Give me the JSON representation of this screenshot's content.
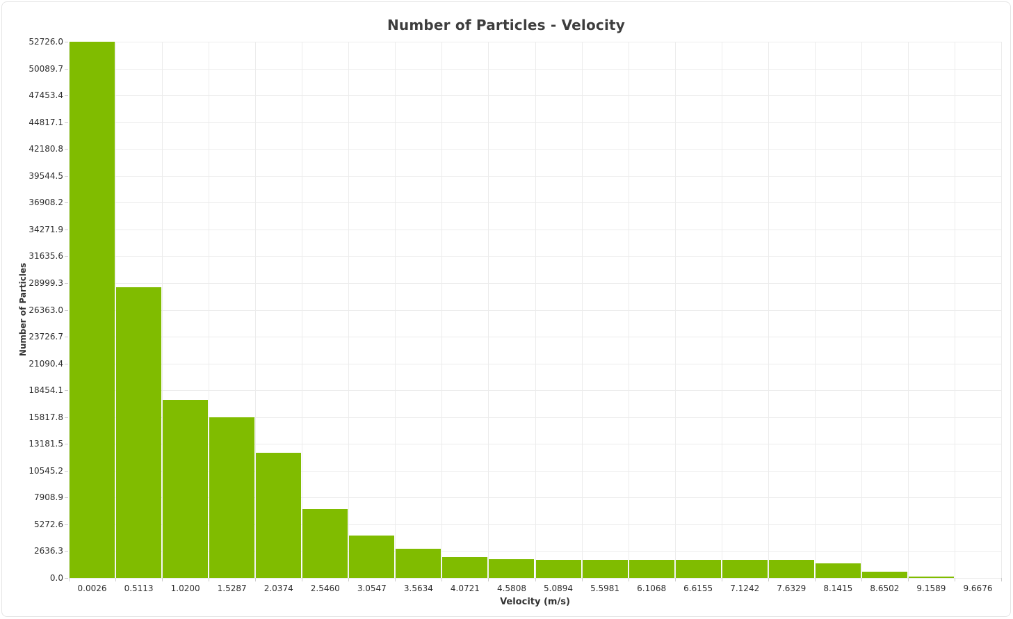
{
  "title": "Number of Particles - Velocity",
  "colors": {
    "bar": "#80bc00",
    "grid": "#ececec",
    "tick_mark": "#cccccc",
    "tick_text": "#2d2d2d",
    "title_text": "#3d3d3d",
    "axis_title_text": "#333333",
    "panel_border": "#e5e5e5",
    "background": "#ffffff"
  },
  "chart_data": {
    "type": "bar",
    "title": "Number of Particles - Velocity",
    "xlabel": "Velocity (m/s)",
    "ylabel": "Number of Particles",
    "categories": [
      "0.0026",
      "0.5113",
      "1.0200",
      "1.5287",
      "2.0374",
      "2.5460",
      "3.0547",
      "3.5634",
      "4.0721",
      "4.5808",
      "5.0894",
      "5.5981",
      "6.1068",
      "6.6155",
      "7.1242",
      "7.6329",
      "8.1415",
      "8.6502",
      "9.1589",
      "9.6676"
    ],
    "values": [
      52726,
      28590,
      17530,
      15820,
      12330,
      6750,
      4160,
      2890,
      2050,
      1820,
      1780,
      1795,
      1780,
      1780,
      1795,
      1795,
      1440,
      620,
      140,
      0
    ],
    "y_ticks": [
      "0.0",
      "2636.3",
      "5272.6",
      "7908.9",
      "10545.2",
      "13181.5",
      "15817.8",
      "18454.1",
      "21090.4",
      "23726.7",
      "26363.0",
      "28999.3",
      "31635.6",
      "34271.9",
      "36908.2",
      "39544.5",
      "42180.8",
      "44817.1",
      "47453.4",
      "50089.7",
      "52726.0"
    ],
    "ylim": [
      0,
      52726
    ],
    "grid": true,
    "legend": "none",
    "bar_color": "#80bc00"
  }
}
